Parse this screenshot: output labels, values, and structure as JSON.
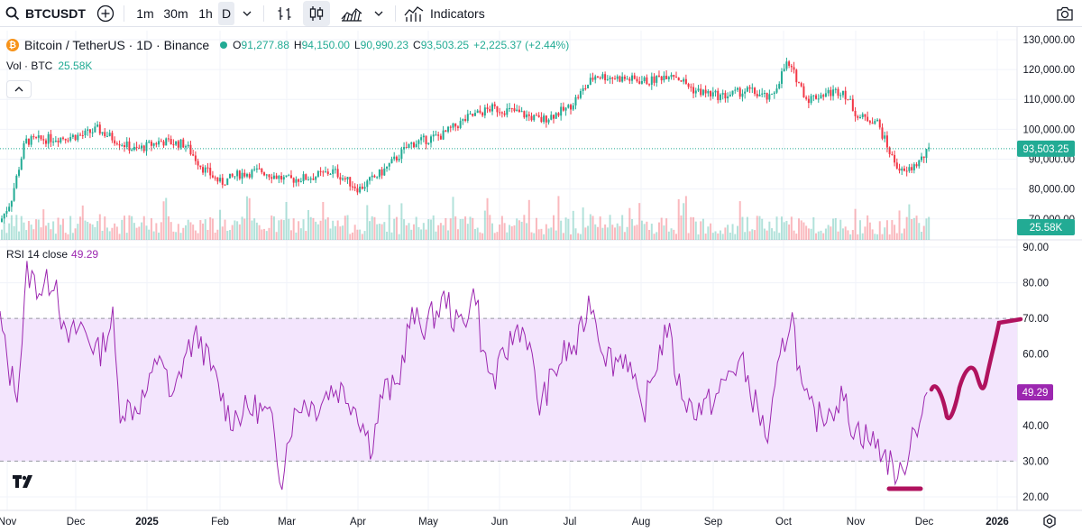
{
  "toolbar": {
    "symbol": "BTCUSDT",
    "intervals": [
      "1m",
      "30m",
      "1h",
      "D"
    ],
    "active_interval": "D",
    "indicators_label": "Indicators"
  },
  "legend": {
    "title": "Bitcoin / TetherUS · 1D · Binance",
    "coin_letter": "₿",
    "open_label": "O",
    "open": "91,277.88",
    "high_label": "H",
    "high": "94,150.00",
    "low_label": "L",
    "low": "90,990.23",
    "close_label": "C",
    "close": "93,503.25",
    "change": "+2,225.37 (+2.44%)"
  },
  "volume_legend": {
    "label": "Vol · BTC",
    "value": "25.58K"
  },
  "rsi_legend": {
    "label": "RSI 14 close",
    "value": "49.29"
  },
  "price_axis": [
    "130,000.00",
    "120,000.00",
    "110,000.00",
    "100,000.00",
    "90,000.00",
    "80,000.00",
    "70,000.00"
  ],
  "price_badge": "93,503.25",
  "volume_badge": "25.58K",
  "rsi_axis": [
    "90.00",
    "80.00",
    "70.00",
    "60.00",
    "50.00",
    "40.00",
    "30.00",
    "20.00"
  ],
  "rsi_badge": "49.29",
  "time_axis": [
    "Nov",
    "Dec",
    "2025",
    "Feb",
    "Mar",
    "Apr",
    "May",
    "Jun",
    "Jul",
    "Aug",
    "Sep",
    "Oct",
    "Nov",
    "Dec",
    "2026"
  ],
  "colors": {
    "up": "#22ab94",
    "down": "#f23645",
    "rsi": "#9c27b0",
    "rsi_band": "#f3e5fd",
    "drawing": "#b0125e"
  },
  "chart_data": {
    "type": "candlestick",
    "symbol": "BTCUSDT",
    "interval": "1D",
    "x_labels": [
      "Nov",
      "Dec",
      "2025",
      "Feb",
      "Mar",
      "Apr",
      "May",
      "Jun",
      "Jul",
      "Aug",
      "Sep",
      "Oct",
      "Nov",
      "Dec",
      "2026"
    ],
    "price_close_approx": [
      {
        "x": "Nov",
        "close": 69000
      },
      {
        "x": "Dec",
        "close": 97000
      },
      {
        "x": "2025",
        "close": 94000
      },
      {
        "x": "Feb",
        "close": 100000
      },
      {
        "x": "Mar",
        "close": 84000
      },
      {
        "x": "Apr",
        "close": 83000
      },
      {
        "x": "May",
        "close": 94000
      },
      {
        "x": "Jun",
        "close": 105000
      },
      {
        "x": "Jul",
        "close": 107000
      },
      {
        "x": "Aug",
        "close": 115000
      },
      {
        "x": "Sep",
        "close": 109000
      },
      {
        "x": "Oct",
        "close": 120000
      },
      {
        "x": "Nov",
        "close": 110000
      },
      {
        "x": "Dec",
        "close": 91000
      }
    ],
    "last_close": 93503.25,
    "price_ylim": [
      63000,
      133000
    ],
    "rsi": {
      "period": 14,
      "last": 49.29,
      "upper_band": 70,
      "lower_band": 30,
      "ylim": [
        20,
        90
      ]
    }
  }
}
